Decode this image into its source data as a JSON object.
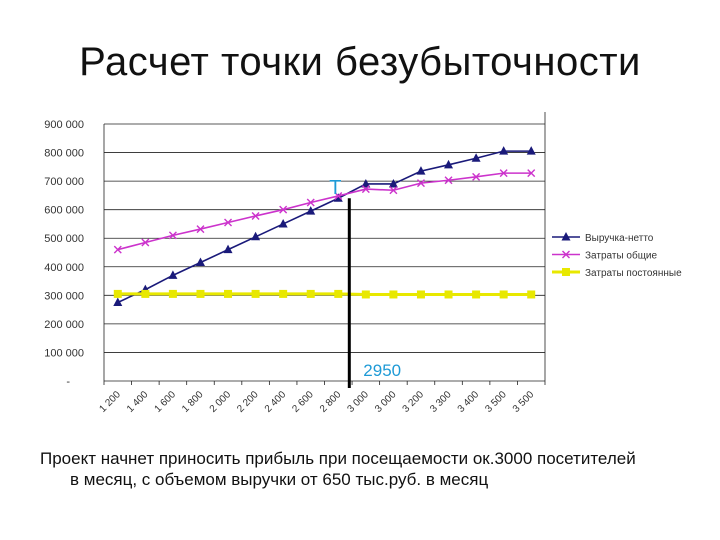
{
  "slide": {
    "title": "Расчет точки безубыточности",
    "caption_line1": "Проект начнет приносить прибыль при посещаемости ок.3000 посетителей",
    "caption_line2": "в месяц, с объемом выручки от 650 тыс.руб. в месяц"
  },
  "chart_data": {
    "type": "line",
    "categories": [
      "1 200",
      "1 400",
      "1 600",
      "1 800",
      "2 000",
      "2 200",
      "2 400",
      "2 600",
      "2 800",
      "3 000",
      "3 000",
      "3 200",
      "3 300",
      "3 400",
      "3 500",
      "3 500"
    ],
    "y_tick_labels": [
      "-",
      "100 000",
      "200 000",
      "300 000",
      "400 000",
      "500 000",
      "600 000",
      "700 000",
      "800 000",
      "900 000"
    ],
    "ylim": [
      0,
      900000
    ],
    "grid": true,
    "legend_position": "right",
    "series": [
      {
        "name": "Выручка-нетто",
        "color": "#1a1a7a",
        "marker": "triangle",
        "values": [
          275000,
          320000,
          370000,
          415000,
          460000,
          505000,
          550000,
          595000,
          640000,
          690000,
          690000,
          735000,
          757000,
          780000,
          805000,
          805000
        ]
      },
      {
        "name": "Затраты общие",
        "color": "#cc33cc",
        "marker": "x",
        "values": [
          460000,
          485000,
          510000,
          532000,
          555000,
          578000,
          600000,
          625000,
          648000,
          672000,
          668000,
          693000,
          703000,
          715000,
          728000,
          728000
        ]
      },
      {
        "name": "Затраты постоянные",
        "color": "#e8e800",
        "marker": "square",
        "values": [
          305000,
          305000,
          305000,
          305000,
          305000,
          305000,
          305000,
          305000,
          305000,
          303000,
          303000,
          303000,
          303000,
          303000,
          303000,
          303000
        ]
      }
    ],
    "annotations": {
      "point_label": "Т",
      "point_color": "#1e9ad6",
      "breakeven_label": "2950",
      "breakeven_color": "#1e9ad6",
      "vline_after_index": 8.4
    }
  }
}
